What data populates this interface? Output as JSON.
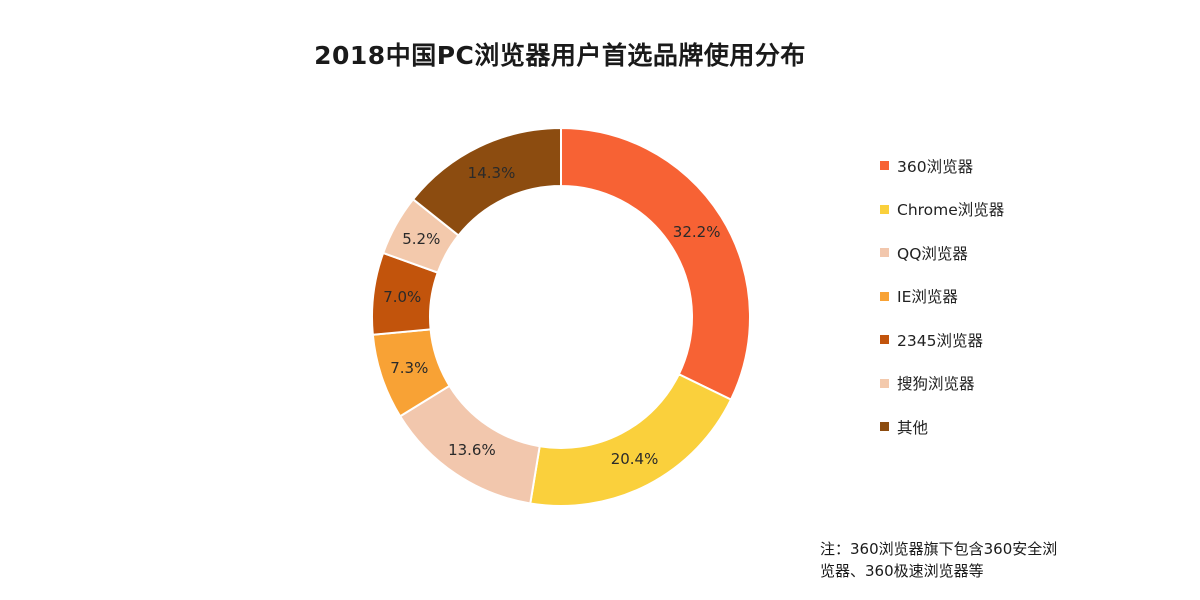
{
  "chart_data": {
    "type": "pie",
    "variant": "donut",
    "title": "2018中国PC浏览器用户首选品牌使用分布",
    "unit": "%",
    "legend_position": "right",
    "slices": [
      {
        "label": "360浏览器",
        "value": 32.2,
        "value_label": "32.2%",
        "color": "#f76234"
      },
      {
        "label": "Chrome浏览器",
        "value": 20.4,
        "value_label": "20.4%",
        "color": "#fad03c"
      },
      {
        "label": "QQ浏览器",
        "value": 13.6,
        "value_label": "13.6%",
        "color": "#f2c7ad"
      },
      {
        "label": "IE浏览器",
        "value": 7.3,
        "value_label": "7.3%",
        "color": "#f8a235"
      },
      {
        "label": "2345浏览器",
        "value": 7.0,
        "value_label": "7.0%",
        "color": "#c2540c"
      },
      {
        "label": "搜狗浏览器",
        "value": 5.2,
        "value_label": "5.2%",
        "color": "#f3c9ac"
      },
      {
        "label": "其他",
        "value": 14.3,
        "value_label": "14.3%",
        "color": "#8c4c10"
      }
    ]
  },
  "footnote": {
    "line1": "注：360浏览器旗下包含360安全浏",
    "line2": "览器、360极速浏览器等"
  }
}
